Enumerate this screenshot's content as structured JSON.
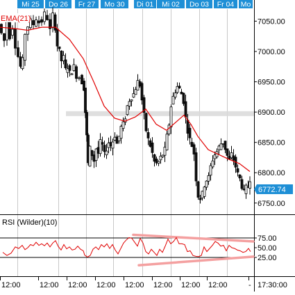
{
  "chart_data": {
    "type": "candlestick",
    "date_tabs": [
      {
        "label": "Mi 25"
      },
      {
        "label": "Do 26"
      },
      {
        "label": "Fr 27"
      },
      {
        "label": "Mo 30"
      },
      {
        "label": "Di 01"
      },
      {
        "label": "Mi 02"
      },
      {
        "label": "Do 03"
      },
      {
        "label": "Fr 04"
      },
      {
        "label": "Mo"
      }
    ],
    "bottom_axis": {
      "tick_labels": [
        "12:00",
        "12:00",
        "12:00",
        "12:00",
        "12:00",
        "12:00",
        "12:00",
        "12:00",
        "-"
      ],
      "end_label": "17:30:00"
    },
    "price_panel": {
      "series_label": "EMA(21)",
      "y_ticks": [
        7050,
        7000,
        6950,
        6900,
        6850,
        6800,
        6750
      ],
      "y_tick_labels": [
        "7050.00",
        "7000.00",
        "6950.00",
        "6900.00",
        "6850.00",
        "6800.00",
        "6750.00"
      ],
      "ylim": [
        6736,
        7070
      ],
      "highlight_level": 6898,
      "last_price": 6772.74,
      "last_price_label": "6772.74",
      "candle_close_points": [
        [
          0,
          7045
        ],
        [
          4,
          7030
        ],
        [
          8,
          7018
        ],
        [
          12,
          7050
        ],
        [
          16,
          7025
        ],
        [
          20,
          7040
        ],
        [
          24,
          7010
        ],
        [
          28,
          6992
        ],
        [
          31,
          6975
        ],
        [
          34,
          6985
        ],
        [
          38,
          7030
        ],
        [
          42,
          7042
        ],
        [
          46,
          7050
        ],
        [
          50,
          7045
        ],
        [
          54,
          7055
        ],
        [
          58,
          7048
        ],
        [
          62,
          7050
        ],
        [
          66,
          7062
        ],
        [
          70,
          7055
        ],
        [
          74,
          7035
        ],
        [
          78,
          7060
        ],
        [
          81,
          7040
        ],
        [
          84,
          7010
        ],
        [
          87,
          7000
        ],
        [
          90,
          6985
        ],
        [
          93,
          6990
        ],
        [
          96,
          6970
        ],
        [
          99,
          6975
        ],
        [
          102,
          6965
        ],
        [
          105,
          6968
        ],
        [
          108,
          6975
        ],
        [
          112,
          6960
        ],
        [
          116,
          6958
        ],
        [
          120,
          6950
        ],
        [
          122,
          6940
        ],
        [
          124,
          6900
        ],
        [
          126,
          6860
        ],
        [
          128,
          6815
        ],
        [
          131,
          6840
        ],
        [
          134,
          6830
        ],
        [
          137,
          6820
        ],
        [
          140,
          6840
        ],
        [
          143,
          6832
        ],
        [
          146,
          6850
        ],
        [
          149,
          6845
        ],
        [
          152,
          6830
        ],
        [
          155,
          6840
        ],
        [
          158,
          6850
        ],
        [
          161,
          6845
        ],
        [
          164,
          6852
        ],
        [
          167,
          6862
        ],
        [
          170,
          6848
        ],
        [
          173,
          6860
        ],
        [
          176,
          6875
        ],
        [
          179,
          6880
        ],
        [
          182,
          6892
        ],
        [
          185,
          6910
        ],
        [
          188,
          6920
        ],
        [
          191,
          6925
        ],
        [
          194,
          6930
        ],
        [
          197,
          6940
        ],
        [
          200,
          6950
        ],
        [
          203,
          6945
        ],
        [
          206,
          6920
        ],
        [
          209,
          6895
        ],
        [
          212,
          6870
        ],
        [
          215,
          6855
        ],
        [
          218,
          6845
        ],
        [
          221,
          6832
        ],
        [
          224,
          6818
        ],
        [
          227,
          6815
        ],
        [
          230,
          6818
        ],
        [
          233,
          6825
        ],
        [
          236,
          6830
        ],
        [
          239,
          6838
        ],
        [
          242,
          6860
        ],
        [
          245,
          6880
        ],
        [
          248,
          6910
        ],
        [
          251,
          6925
        ],
        [
          254,
          6935
        ],
        [
          257,
          6942
        ],
        [
          260,
          6938
        ],
        [
          263,
          6930
        ],
        [
          266,
          6918
        ],
        [
          269,
          6890
        ],
        [
          272,
          6870
        ],
        [
          275,
          6855
        ],
        [
          278,
          6845
        ],
        [
          281,
          6832
        ],
        [
          284,
          6790
        ],
        [
          287,
          6762
        ],
        [
          290,
          6758
        ],
        [
          293,
          6765
        ],
        [
          296,
          6780
        ],
        [
          299,
          6788
        ],
        [
          302,
          6792
        ],
        [
          305,
          6810
        ],
        [
          308,
          6822
        ],
        [
          311,
          6830
        ],
        [
          314,
          6835
        ],
        [
          317,
          6842
        ],
        [
          320,
          6848
        ],
        [
          323,
          6850
        ],
        [
          326,
          6840
        ],
        [
          329,
          6828
        ],
        [
          332,
          6820
        ],
        [
          335,
          6830
        ],
        [
          338,
          6822
        ],
        [
          341,
          6810
        ],
        [
          344,
          6798
        ],
        [
          347,
          6790
        ],
        [
          350,
          6778
        ],
        [
          353,
          6768
        ],
        [
          356,
          6775
        ],
        [
          359,
          6778
        ],
        [
          361,
          6790
        ]
      ],
      "ema21_points": [
        [
          0,
          7040
        ],
        [
          20,
          7038
        ],
        [
          40,
          7035
        ],
        [
          60,
          7040
        ],
        [
          80,
          7040
        ],
        [
          100,
          7020
        ],
        [
          120,
          6988
        ],
        [
          135,
          6950
        ],
        [
          150,
          6910
        ],
        [
          165,
          6890
        ],
        [
          180,
          6885
        ],
        [
          195,
          6892
        ],
        [
          210,
          6905
        ],
        [
          225,
          6880
        ],
        [
          240,
          6870
        ],
        [
          255,
          6885
        ],
        [
          265,
          6895
        ],
        [
          275,
          6880
        ],
        [
          285,
          6860
        ],
        [
          300,
          6838
        ],
        [
          315,
          6830
        ],
        [
          330,
          6822
        ],
        [
          345,
          6815
        ],
        [
          360,
          6802
        ]
      ]
    },
    "rsi_panel": {
      "title": "RSI (Wilder)(10)",
      "y_ticks": [
        75,
        50,
        25
      ],
      "y_tick_labels": [
        "75.00",
        "50.00",
        "25.00"
      ],
      "ylim": [
        0,
        100
      ],
      "upper_band": 75,
      "lower_band": 25,
      "series": [
        [
          4,
          38
        ],
        [
          10,
          30
        ],
        [
          16,
          36
        ],
        [
          22,
          52
        ],
        [
          27,
          48
        ],
        [
          32,
          56
        ],
        [
          36,
          45
        ],
        [
          40,
          50
        ],
        [
          44,
          58
        ],
        [
          48,
          55
        ],
        [
          52,
          64
        ],
        [
          56,
          56
        ],
        [
          60,
          60
        ],
        [
          64,
          55
        ],
        [
          68,
          62
        ],
        [
          72,
          52
        ],
        [
          76,
          62
        ],
        [
          80,
          68
        ],
        [
          84,
          53
        ],
        [
          88,
          44
        ],
        [
          92,
          58
        ],
        [
          96,
          47
        ],
        [
          100,
          52
        ],
        [
          104,
          44
        ],
        [
          108,
          46
        ],
        [
          112,
          54
        ],
        [
          116,
          46
        ],
        [
          120,
          42
        ],
        [
          122,
          31
        ],
        [
          126,
          26
        ],
        [
          130,
          30
        ],
        [
          134,
          46
        ],
        [
          138,
          52
        ],
        [
          142,
          45
        ],
        [
          146,
          58
        ],
        [
          150,
          52
        ],
        [
          154,
          60
        ],
        [
          158,
          48
        ],
        [
          162,
          58
        ],
        [
          166,
          44
        ],
        [
          170,
          34
        ],
        [
          174,
          48
        ],
        [
          178,
          62
        ],
        [
          182,
          70
        ],
        [
          186,
          76
        ],
        [
          190,
          74
        ],
        [
          194,
          64
        ],
        [
          198,
          54
        ],
        [
          202,
          74
        ],
        [
          206,
          62
        ],
        [
          210,
          40
        ],
        [
          214,
          34
        ],
        [
          218,
          46
        ],
        [
          222,
          38
        ],
        [
          226,
          30
        ],
        [
          230,
          46
        ],
        [
          234,
          38
        ],
        [
          238,
          54
        ],
        [
          242,
          72
        ],
        [
          246,
          60
        ],
        [
          250,
          66
        ],
        [
          254,
          76
        ],
        [
          258,
          60
        ],
        [
          262,
          60
        ],
        [
          266,
          58
        ],
        [
          270,
          40
        ],
        [
          274,
          42
        ],
        [
          278,
          30
        ],
        [
          282,
          28
        ],
        [
          286,
          27
        ],
        [
          290,
          30
        ],
        [
          294,
          52
        ],
        [
          298,
          40
        ],
        [
          302,
          48
        ],
        [
          306,
          56
        ],
        [
          310,
          66
        ],
        [
          314,
          62
        ],
        [
          318,
          54
        ],
        [
          322,
          56
        ],
        [
          326,
          42
        ],
        [
          330,
          56
        ],
        [
          334,
          50
        ],
        [
          338,
          48
        ],
        [
          342,
          44
        ],
        [
          346,
          42
        ],
        [
          350,
          38
        ],
        [
          354,
          40
        ],
        [
          358,
          48
        ],
        [
          361,
          40
        ]
      ],
      "trendlines": [
        {
          "x1": 192,
          "y1": 83,
          "x2": 365,
          "y2": 66
        },
        {
          "x1": 200,
          "y1": 5,
          "x2": 365,
          "y2": 27
        }
      ]
    },
    "colors": {
      "candle_up": "#ffffff",
      "candle_down": "#111111",
      "ema": "#e00000",
      "rsi": "#e00000",
      "trendline": "#f4a0a0",
      "tab_bg": "#1e8fd6",
      "tab_text": "#ffffff",
      "last_price_bg": "#1e8fd6",
      "highlight_band": "#d9d9d9",
      "grid_vertical": "#c8c8c8"
    }
  }
}
